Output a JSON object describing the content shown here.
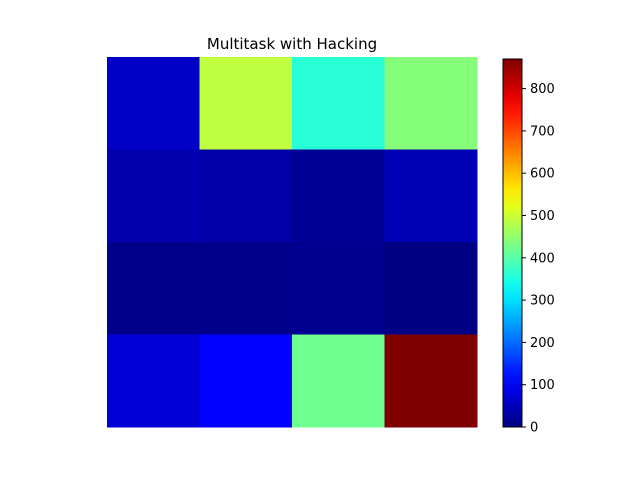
{
  "chart_data": {
    "type": "heatmap",
    "title": "Multitask with Hacking",
    "xlabel": "",
    "ylabel": "",
    "axes_visible": false,
    "grid": false,
    "colormap": "jet",
    "colorbar": {
      "min": 0,
      "max": 870,
      "ticks": [
        0,
        100,
        200,
        300,
        400,
        500,
        600,
        700,
        800
      ],
      "tick_labels": [
        "0",
        "100",
        "200",
        "300",
        "400",
        "500",
        "600",
        "700",
        "800"
      ],
      "placement": "right"
    },
    "rows": 4,
    "cols": 4,
    "values": [
      [
        60,
        490,
        360,
        440
      ],
      [
        40,
        35,
        20,
        45
      ],
      [
        10,
        10,
        15,
        5
      ],
      [
        75,
        110,
        420,
        870
      ]
    ]
  }
}
